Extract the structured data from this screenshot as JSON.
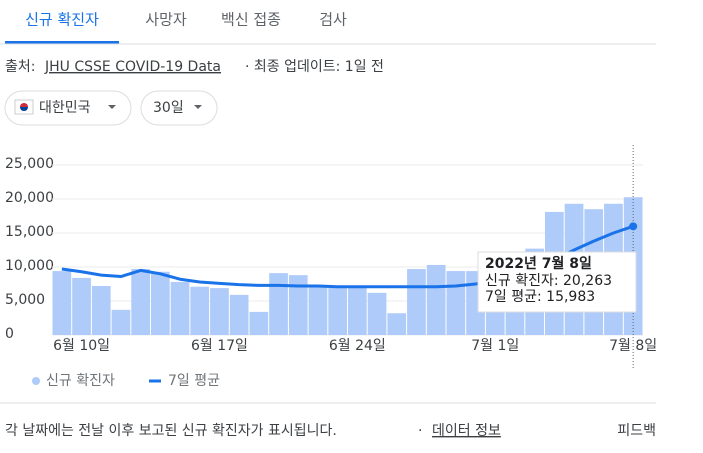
{
  "tabs": [
    "신규 확진자",
    "사망자",
    "백신 접종",
    "검사"
  ],
  "source": {
    "prefix": "출처:",
    "link": "JHU CSSE COVID-19 Data",
    "suffix": "· 최종 업데이트: 1일 전"
  },
  "filters": [
    "대한민국",
    "30일"
  ],
  "chart_data": {
    "type": "bar",
    "categories": [
      null,
      "6월 10일",
      null,
      null,
      null,
      null,
      null,
      null,
      "6월 17일",
      null,
      null,
      null,
      null,
      null,
      null,
      "6월 24일",
      null,
      null,
      null,
      null,
      null,
      null,
      "7월 1일",
      null,
      null,
      null,
      null,
      null,
      null,
      "7월 8일"
    ],
    "series": [
      {
        "name": "신규 확진자",
        "color": "#aecbfa",
        "type": "bar",
        "values": [
          9400,
          8400,
          7200,
          3700,
          9700,
          9300,
          7800,
          7100,
          6900,
          5900,
          3400,
          9100,
          8800,
          7200,
          7200,
          7000,
          6200,
          3200,
          9700,
          10300,
          9400,
          9400,
          10000,
          6200,
          12700,
          18100,
          19300,
          18500,
          19300,
          20263
        ]
      },
      {
        "name": "7일 평균",
        "color": "#1a73e8",
        "type": "line",
        "values": [
          9700,
          9300,
          8800,
          8600,
          9500,
          9000,
          8200,
          7800,
          7600,
          7400,
          7300,
          7300,
          7200,
          7200,
          7100,
          7100,
          7100,
          7100,
          7100,
          7100,
          7200,
          7500,
          7900,
          8300,
          9500,
          11000,
          12500,
          13800,
          15000,
          15983
        ]
      }
    ],
    "ylim": [
      0,
      25000
    ],
    "yticks": [
      0,
      {
        "value": 5000,
        "label": "5,000"
      },
      {
        "value": 10000,
        "label": "10,000"
      },
      {
        "value": 15000,
        "label": "15,000"
      },
      {
        "value": 20000,
        "label": "20,000"
      },
      {
        "value": 25000,
        "label": "25,000"
      }
    ],
    "grid": true,
    "tooltip": {
      "date": "2022년 7월 8일",
      "lines": [
        "신규 확진자: 20,263",
        "7일 평균: 15,983"
      ]
    }
  },
  "footer": {
    "note": "각 날짜에는 전날 이후 보고된 신규 확진자가 표시됩니다.",
    "sep": "·",
    "link": "데이터 정보",
    "feedback": "피드백"
  }
}
